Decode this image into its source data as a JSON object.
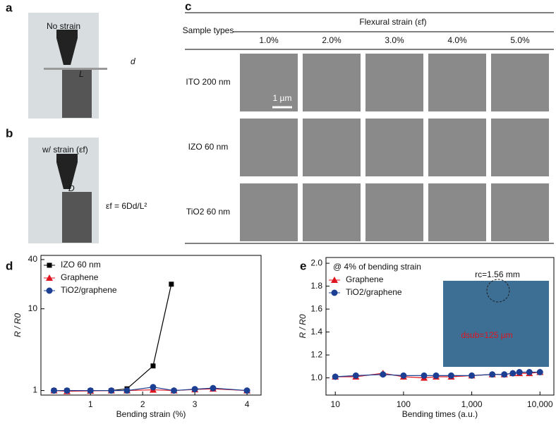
{
  "panel_labels": [
    "a",
    "b",
    "c",
    "d",
    "e"
  ],
  "photo_a": {
    "caption": "No strain",
    "d": "d",
    "L": "L"
  },
  "photo_b": {
    "caption": "w/ strain (εf)",
    "D": "D",
    "formula": "εf = 6Dd/L²"
  },
  "sem_table": {
    "header_sample": "Sample types",
    "header_strain": "Flexural strain (εf)",
    "strains": [
      "1.0%",
      "2.0%",
      "3.0%",
      "4.0%",
      "5.0%"
    ],
    "rows": [
      "ITO 200 nm",
      "IZO 60 nm",
      "TiO2 60 nm"
    ],
    "scale_bar": "1 µm"
  },
  "chart_data": [
    {
      "type": "line",
      "x_label": "Bending strain (%)",
      "y_label": "R / R0",
      "ylog": true,
      "xlim": [
        0.05,
        4.27
      ],
      "xticks": [
        1,
        2,
        3,
        4
      ],
      "ylim": [
        0.88,
        45
      ],
      "yticks": [
        1,
        10,
        40
      ],
      "legend": "upper left",
      "series": [
        {
          "name": "IZO 60 nm",
          "color": "#000000",
          "marker": "square",
          "x": [
            0.3,
            0.55,
            1.0,
            1.4,
            1.7,
            2.2,
            2.55
          ],
          "values": [
            1.0,
            1.0,
            1.0,
            1.0,
            1.05,
            2.0,
            20
          ]
        },
        {
          "name": "Graphene",
          "color": "#e0141e",
          "marker": "triangle",
          "x": [
            0.3,
            0.55,
            1.0,
            1.4,
            1.7,
            2.2,
            2.6,
            3.0,
            3.35,
            4.0
          ],
          "values": [
            1.0,
            0.98,
            0.99,
            1.0,
            1.0,
            1.02,
            1.0,
            1.03,
            1.05,
            1.0
          ]
        },
        {
          "name": "TiO2/graphene",
          "color": "#1c3f94",
          "marker": "circle",
          "x": [
            0.3,
            0.55,
            1.0,
            1.4,
            1.7,
            2.2,
            2.6,
            3.0,
            3.35,
            4.0
          ],
          "values": [
            1.0,
            1.0,
            1.0,
            1.0,
            1.0,
            1.1,
            1.0,
            1.04,
            1.07,
            1.0
          ]
        }
      ]
    },
    {
      "type": "line",
      "x_label": "Bending times (a.u.)",
      "y_label": "R / R0",
      "xlog": true,
      "annotation": "@ 4% of bending strain",
      "inset_labels": [
        "rc=1.56 mm",
        "dsub=125 µm"
      ],
      "xlim": [
        7.3,
        16000
      ],
      "xticks": [
        10,
        100,
        {
          "value": 1000,
          "label": "1,000"
        },
        {
          "value": 10000,
          "label": "10,000"
        }
      ],
      "ylim": [
        0.85,
        2.05
      ],
      "yticks": [
        {
          "value": 1,
          "label": "1.0"
        },
        1.2,
        1.4,
        1.6,
        1.8,
        {
          "value": 2,
          "label": "2.0"
        }
      ],
      "legend": "upper left",
      "series": [
        {
          "name": "Graphene",
          "color": "#e0141e",
          "marker": "triangle",
          "x": [
            10,
            20,
            50,
            100,
            200,
            300,
            500,
            1000,
            2000,
            3000,
            4000,
            5000,
            7000,
            10000
          ],
          "values": [
            1.01,
            1.01,
            1.04,
            1.01,
            1.0,
            1.01,
            1.01,
            1.02,
            1.03,
            1.03,
            1.04,
            1.04,
            1.04,
            1.05
          ]
        },
        {
          "name": "TiO2/graphene",
          "color": "#1c3f94",
          "marker": "circle",
          "x": [
            10,
            20,
            50,
            100,
            200,
            300,
            500,
            1000,
            2000,
            3000,
            4000,
            5000,
            7000,
            10000
          ],
          "values": [
            1.01,
            1.02,
            1.03,
            1.02,
            1.02,
            1.02,
            1.02,
            1.02,
            1.03,
            1.03,
            1.04,
            1.05,
            1.05,
            1.05
          ]
        }
      ]
    }
  ]
}
